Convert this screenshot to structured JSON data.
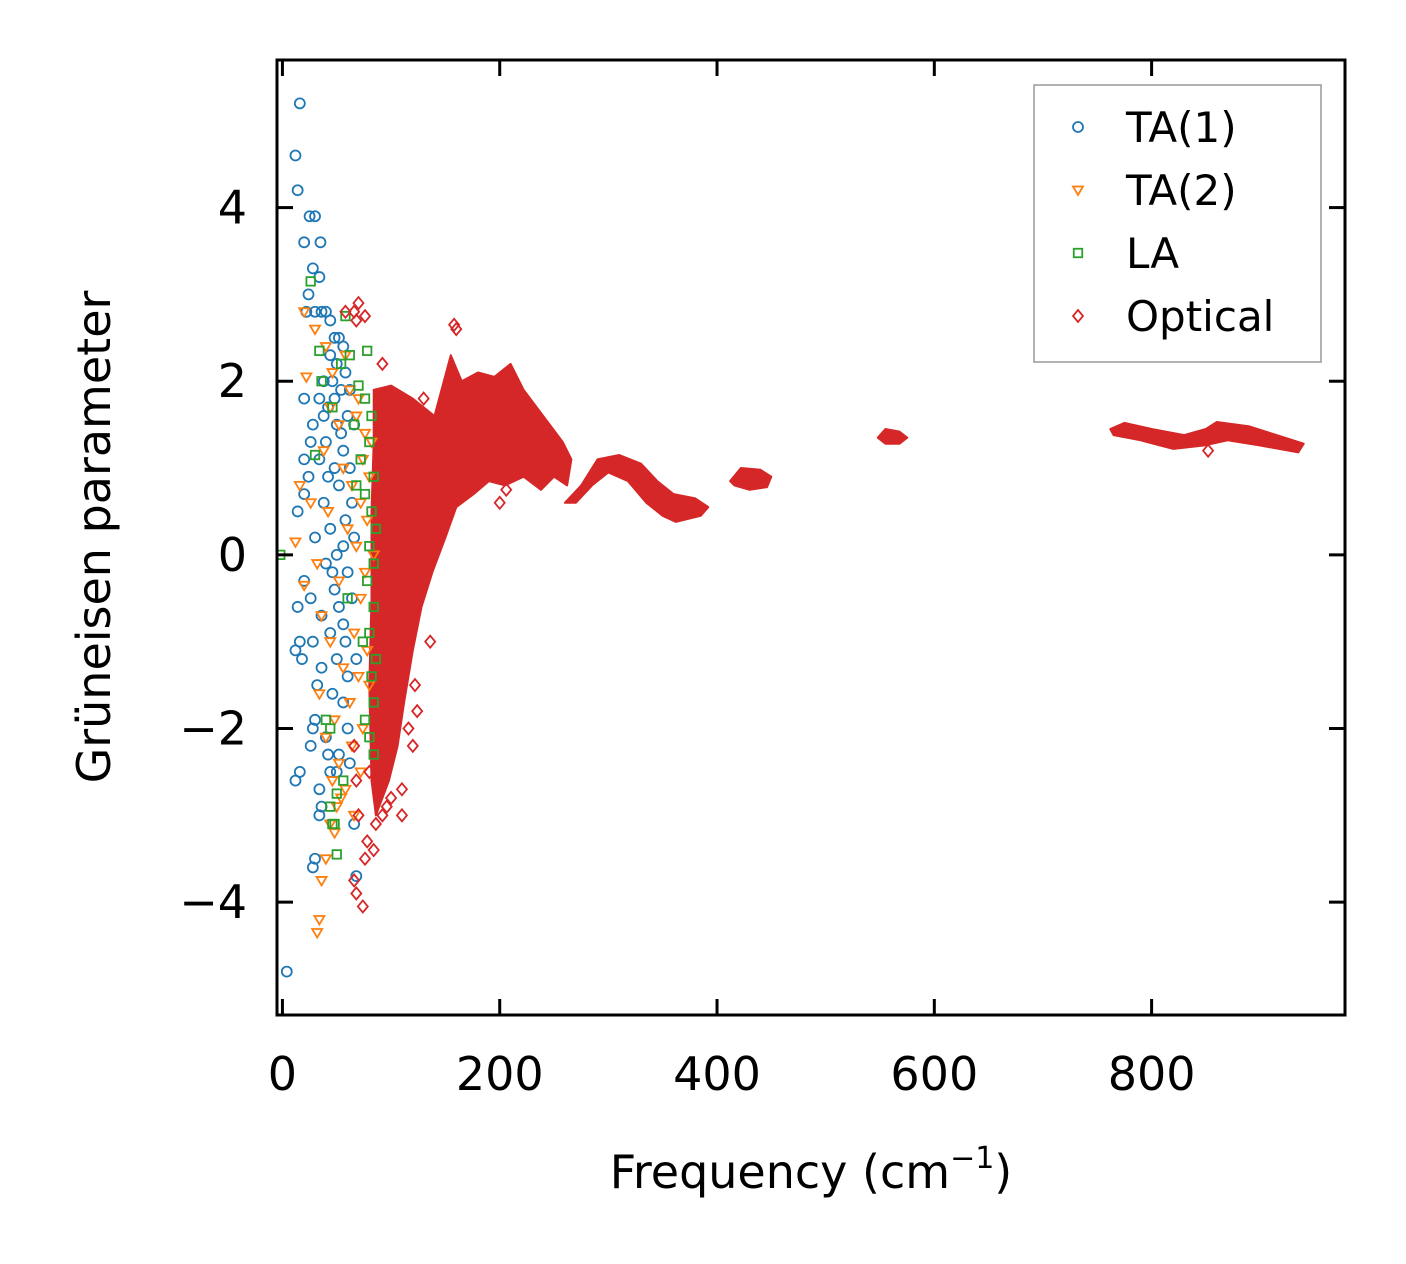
{
  "chart_data": {
    "type": "scatter",
    "title": "",
    "xlabel": "Frequency (cm",
    "xlabel_sup": "−1",
    "xlabel_end": ")",
    "ylabel": "Grüneisen parameter",
    "xlim": [
      -5,
      978
    ],
    "ylim": [
      -5.3,
      5.7
    ],
    "xticks": [
      0,
      200,
      400,
      600,
      800
    ],
    "xtick_labels": [
      "0",
      "200",
      "400",
      "600",
      "800"
    ],
    "yticks": [
      -4,
      -2,
      0,
      2,
      4
    ],
    "ytick_labels": [
      "−4",
      "−2",
      "0",
      "2",
      "4"
    ],
    "legend_position": "top-right",
    "series": [
      {
        "name": "TA(1)",
        "marker": "circle",
        "color": "#1f77b4",
        "points": [
          [
            16,
            5.2
          ],
          [
            12,
            4.6
          ],
          [
            14,
            4.2
          ],
          [
            25,
            3.9
          ],
          [
            30,
            3.9
          ],
          [
            20,
            3.6
          ],
          [
            35,
            3.6
          ],
          [
            28,
            3.3
          ],
          [
            34,
            3.2
          ],
          [
            24,
            3.0
          ],
          [
            22,
            2.8
          ],
          [
            30,
            2.8
          ],
          [
            36,
            2.8
          ],
          [
            40,
            2.8
          ],
          [
            44,
            2.7
          ],
          [
            48,
            2.5
          ],
          [
            52,
            2.5
          ],
          [
            56,
            2.4
          ],
          [
            44,
            2.3
          ],
          [
            50,
            2.2
          ],
          [
            58,
            2.1
          ],
          [
            38,
            2.0
          ],
          [
            46,
            2.0
          ],
          [
            54,
            1.9
          ],
          [
            62,
            1.9
          ],
          [
            20,
            1.8
          ],
          [
            34,
            1.8
          ],
          [
            42,
            1.7
          ],
          [
            60,
            1.6
          ],
          [
            28,
            1.5
          ],
          [
            50,
            1.5
          ],
          [
            66,
            1.5
          ],
          [
            26,
            1.3
          ],
          [
            40,
            1.3
          ],
          [
            56,
            1.2
          ],
          [
            20,
            1.1
          ],
          [
            34,
            1.1
          ],
          [
            48,
            1.0
          ],
          [
            62,
            1.0
          ],
          [
            24,
            0.9
          ],
          [
            52,
            0.8
          ],
          [
            20,
            0.7
          ],
          [
            38,
            0.6
          ],
          [
            14,
            0.5
          ],
          [
            58,
            0.4
          ],
          [
            44,
            0.3
          ],
          [
            30,
            0.2
          ],
          [
            66,
            0.2
          ],
          [
            50,
            0.0
          ],
          [
            40,
            -0.1
          ],
          [
            60,
            -0.2
          ],
          [
            20,
            -0.3
          ],
          [
            48,
            -0.4
          ],
          [
            26,
            -0.5
          ],
          [
            64,
            -0.5
          ],
          [
            14,
            -0.6
          ],
          [
            36,
            -0.7
          ],
          [
            56,
            -0.8
          ],
          [
            44,
            -0.9
          ],
          [
            16,
            -1.0
          ],
          [
            28,
            -1.0
          ],
          [
            12,
            -1.1
          ],
          [
            50,
            -1.2
          ],
          [
            18,
            -1.2
          ],
          [
            36,
            -1.3
          ],
          [
            60,
            -1.4
          ],
          [
            32,
            -1.5
          ],
          [
            46,
            -1.6
          ],
          [
            56,
            -1.7
          ],
          [
            30,
            -1.9
          ],
          [
            28,
            -2.0
          ],
          [
            40,
            -2.1
          ],
          [
            26,
            -2.2
          ],
          [
            52,
            -2.3
          ],
          [
            62,
            -2.4
          ],
          [
            16,
            -2.5
          ],
          [
            44,
            -2.5
          ],
          [
            50,
            -2.5
          ],
          [
            12,
            -2.6
          ],
          [
            34,
            -2.7
          ],
          [
            36,
            -2.9
          ],
          [
            34,
            -3.0
          ],
          [
            66,
            -3.1
          ],
          [
            30,
            -3.5
          ],
          [
            28,
            -3.6
          ],
          [
            68,
            -3.7
          ],
          [
            4,
            -4.8
          ],
          [
            42,
            0.9
          ],
          [
            54,
            1.4
          ],
          [
            46,
            -0.2
          ],
          [
            58,
            -1.0
          ],
          [
            38,
            1.6
          ],
          [
            64,
            0.6
          ],
          [
            52,
            -0.6
          ],
          [
            48,
            1.8
          ],
          [
            56,
            0.1
          ],
          [
            60,
            -2.0
          ],
          [
            42,
            -2.3
          ],
          [
            68,
            -1.2
          ]
        ]
      },
      {
        "name": "TA(2)",
        "marker": "triangle",
        "color": "#ff7f0e",
        "points": [
          [
            34,
            -4.2
          ],
          [
            32,
            -4.35
          ],
          [
            20,
            2.8
          ],
          [
            30,
            2.6
          ],
          [
            40,
            2.4
          ],
          [
            58,
            2.3
          ],
          [
            46,
            2.1
          ],
          [
            22,
            2.05
          ],
          [
            62,
            1.9
          ],
          [
            70,
            1.8
          ],
          [
            44,
            1.7
          ],
          [
            68,
            1.6
          ],
          [
            52,
            1.5
          ],
          [
            76,
            1.4
          ],
          [
            38,
            1.2
          ],
          [
            74,
            1.1
          ],
          [
            56,
            1.0
          ],
          [
            80,
            0.9
          ],
          [
            64,
            0.8
          ],
          [
            16,
            0.8
          ],
          [
            26,
            0.6
          ],
          [
            72,
            0.6
          ],
          [
            42,
            0.5
          ],
          [
            78,
            0.4
          ],
          [
            60,
            0.3
          ],
          [
            12,
            0.15
          ],
          [
            68,
            0.1
          ],
          [
            32,
            -0.1
          ],
          [
            76,
            -0.2
          ],
          [
            52,
            -0.3
          ],
          [
            20,
            -0.35
          ],
          [
            72,
            -0.5
          ],
          [
            36,
            -0.7
          ],
          [
            66,
            -0.9
          ],
          [
            44,
            -1.0
          ],
          [
            78,
            -1.1
          ],
          [
            56,
            -1.3
          ],
          [
            70,
            -1.4
          ],
          [
            34,
            -1.6
          ],
          [
            62,
            -1.7
          ],
          [
            48,
            -1.9
          ],
          [
            74,
            -2.0
          ],
          [
            40,
            -2.1
          ],
          [
            64,
            -2.2
          ],
          [
            52,
            -2.4
          ],
          [
            46,
            -2.6
          ],
          [
            58,
            -2.7
          ],
          [
            54,
            -2.8
          ],
          [
            50,
            -2.9
          ],
          [
            44,
            -3.1
          ],
          [
            48,
            -3.2
          ],
          [
            40,
            -3.5
          ],
          [
            36,
            -3.75
          ],
          [
            66,
            -3.0
          ],
          [
            72,
            -2.5
          ],
          [
            80,
            -1.5
          ],
          [
            84,
            0.0
          ],
          [
            82,
            1.3
          ]
        ]
      },
      {
        "name": "LA",
        "marker": "square",
        "color": "#2ca02c",
        "points": [
          [
            -2,
            0.0
          ],
          [
            26,
            3.15
          ],
          [
            58,
            2.75
          ],
          [
            34,
            2.35
          ],
          [
            78,
            2.35
          ],
          [
            62,
            2.3
          ],
          [
            54,
            2.2
          ],
          [
            36,
            2.0
          ],
          [
            70,
            1.95
          ],
          [
            76,
            1.8
          ],
          [
            46,
            1.7
          ],
          [
            82,
            1.6
          ],
          [
            66,
            1.5
          ],
          [
            80,
            1.3
          ],
          [
            72,
            1.1
          ],
          [
            84,
            0.9
          ],
          [
            76,
            0.7
          ],
          [
            82,
            0.5
          ],
          [
            86,
            0.3
          ],
          [
            80,
            0.1
          ],
          [
            84,
            -0.1
          ],
          [
            78,
            -0.3
          ],
          [
            84,
            -0.6
          ],
          [
            80,
            -0.9
          ],
          [
            86,
            -1.2
          ],
          [
            82,
            -1.4
          ],
          [
            84,
            -1.7
          ],
          [
            76,
            -1.9
          ],
          [
            44,
            -2.0
          ],
          [
            40,
            -1.9
          ],
          [
            80,
            -2.1
          ],
          [
            84,
            -2.3
          ],
          [
            56,
            -2.6
          ],
          [
            50,
            -2.75
          ],
          [
            44,
            -2.9
          ],
          [
            46,
            -3.1
          ],
          [
            48,
            -3.1
          ],
          [
            50,
            -3.45
          ],
          [
            30,
            1.15
          ],
          [
            60,
            -0.5
          ],
          [
            68,
            0.8
          ],
          [
            74,
            -1.0
          ]
        ]
      },
      {
        "name": "Optical",
        "marker": "diamond",
        "color": "#d62728",
        "points": [
          [
            70,
            2.9
          ],
          [
            66,
            2.8
          ],
          [
            76,
            2.75
          ],
          [
            68,
            2.7
          ],
          [
            58,
            2.8
          ],
          [
            158,
            2.65
          ],
          [
            160,
            2.6
          ],
          [
            92,
            2.2
          ],
          [
            68,
            -3.9
          ],
          [
            74,
            -4.05
          ],
          [
            66,
            -3.75
          ],
          [
            76,
            -3.5
          ],
          [
            84,
            -3.4
          ],
          [
            78,
            -3.3
          ],
          [
            86,
            -3.1
          ],
          [
            92,
            -3.0
          ],
          [
            96,
            -2.9
          ],
          [
            100,
            -2.8
          ],
          [
            110,
            -2.7
          ],
          [
            120,
            -2.2
          ],
          [
            116,
            -2.0
          ],
          [
            122,
            -1.5
          ],
          [
            70,
            -3.0
          ],
          [
            68,
            -2.6
          ],
          [
            66,
            -2.2
          ],
          [
            80,
            -2.5
          ],
          [
            130,
            1.8
          ],
          [
            118,
            1.6
          ],
          [
            110,
            1.5
          ],
          [
            140,
            1.4
          ],
          [
            200,
            0.6
          ],
          [
            206,
            0.75
          ],
          [
            852,
            1.2
          ],
          [
            110,
            -3.0
          ],
          [
            124,
            -1.8
          ],
          [
            136,
            -1.0
          ]
        ]
      }
    ]
  },
  "legend": {
    "items": [
      {
        "label": "TA(1)"
      },
      {
        "label": "TA(2)"
      },
      {
        "label": "LA"
      },
      {
        "label": "Optical"
      }
    ]
  }
}
